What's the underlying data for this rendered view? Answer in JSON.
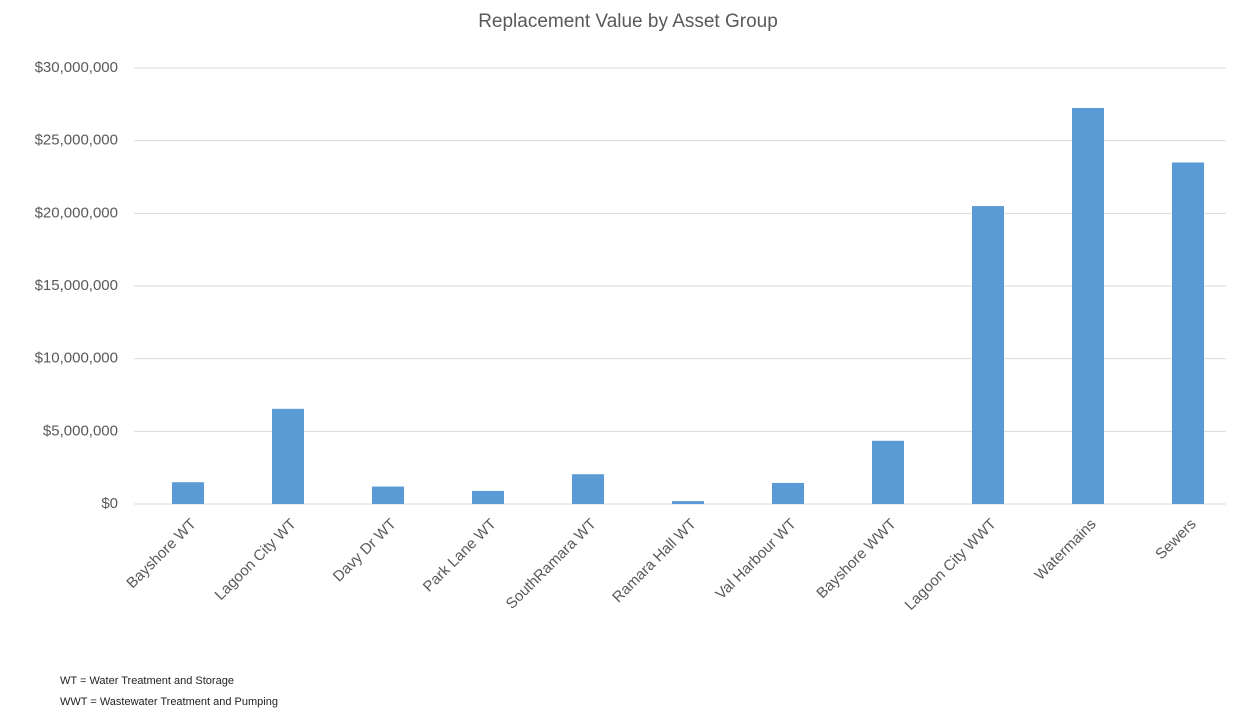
{
  "chart_data": {
    "type": "bar",
    "title": "Replacement Value by Asset Group",
    "categories": [
      "Bayshore WT",
      "Lagoon City WT",
      "Davy Dr WT",
      "Park Lane WT",
      "SouthRamara WT",
      "Ramara Hall WT",
      "Val Harbour WT",
      "Bayshore WWT",
      "Lagoon City WWT",
      "Watermains",
      "Sewers"
    ],
    "values": [
      1500000,
      6550000,
      1200000,
      900000,
      2050000,
      200000,
      1450000,
      4350000,
      20500000,
      27250000,
      23500000
    ],
    "color": "#5b9bd5",
    "ylim": [
      0,
      30000000
    ],
    "yticks": [
      {
        "value": 0,
        "label": "$0"
      },
      {
        "value": 5000000,
        "label": "$5,000,000"
      },
      {
        "value": 10000000,
        "label": "$10,000,000"
      },
      {
        "value": 15000000,
        "label": "$15,000,000"
      },
      {
        "value": 20000000,
        "label": "$20,000,000"
      },
      {
        "value": 25000000,
        "label": "$25,000,000"
      },
      {
        "value": 30000000,
        "label": "$30,000,000"
      }
    ],
    "grid": true,
    "annotations": [
      "WT = Water Treatment and Storage",
      "WWT = Wastewater Treatment and Pumping"
    ]
  }
}
